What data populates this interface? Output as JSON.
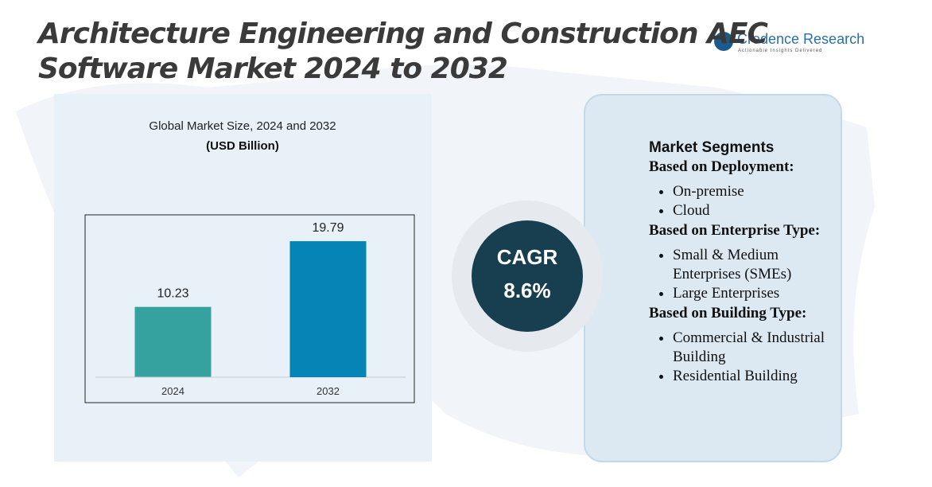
{
  "header": {
    "title_line1": "Architecture Engineering and Construction AEC",
    "title_line2": "Software Market 2024 to 2032"
  },
  "logo": {
    "name": "Credence Research",
    "tagline": "Actionable Insights Delivered"
  },
  "chart_data": {
    "type": "bar",
    "title": "Global Market Size, 2024 and 2032",
    "subtitle": "(USD Billion)",
    "categories": [
      "2024",
      "2032"
    ],
    "values": [
      10.23,
      19.79
    ],
    "colors": [
      "#35a29f",
      "#0585b5"
    ],
    "ylim": [
      0,
      22
    ]
  },
  "cagr": {
    "label": "CAGR",
    "value": "8.6%"
  },
  "segments": {
    "title": "Market Segments",
    "groups": [
      {
        "heading": "Based on Deployment:",
        "items": [
          "On-premise",
          "Cloud"
        ]
      },
      {
        "heading": "Based on Enterprise Type:",
        "items": [
          "Small & Medium Enterprises (SMEs)",
          "Large Enterprises"
        ]
      },
      {
        "heading": "Based on Building Type:",
        "items": [
          "Commercial & Industrial Building",
          "Residential Building"
        ]
      }
    ]
  }
}
